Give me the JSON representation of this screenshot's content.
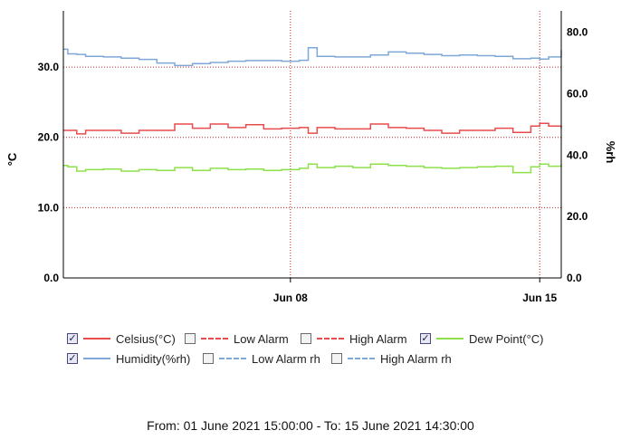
{
  "chart_data": {
    "type": "line",
    "xlabel": "",
    "ylabel": "°C",
    "y2label": "%rh",
    "x_range": [
      "2021-06-01 15:00",
      "2021-06-15 14:30"
    ],
    "x_ticks": [
      {
        "date": "2021-06-08",
        "label": "Jun 08"
      },
      {
        "date": "2021-06-15",
        "label": "Jun 15"
      }
    ],
    "ylim": [
      0,
      38
    ],
    "y_ticks": [
      "0.0",
      "10.0",
      "20.0",
      "30.0"
    ],
    "y2lim": [
      0,
      87
    ],
    "y2_ticks": [
      "0.0",
      "20.0",
      "40.0",
      "60.0",
      "80.0"
    ],
    "grid": true,
    "legend_position": "bottom",
    "series": [
      {
        "name": "Celsius(°C)",
        "axis": "left",
        "color": "#e84c4c",
        "dash": "solid",
        "checked": true,
        "x": [
          "2021-06-01 15:00",
          "2021-06-01 18:00",
          "2021-06-02 00:00",
          "2021-06-02 06:00",
          "2021-06-02 18:00",
          "2021-06-03 06:00",
          "2021-06-03 18:00",
          "2021-06-04 06:00",
          "2021-06-04 18:00",
          "2021-06-05 06:00",
          "2021-06-05 18:00",
          "2021-06-06 06:00",
          "2021-06-06 18:00",
          "2021-06-07 06:00",
          "2021-06-07 18:00",
          "2021-06-08 06:00",
          "2021-06-08 12:00",
          "2021-06-08 18:00",
          "2021-06-09 06:00",
          "2021-06-09 18:00",
          "2021-06-10 06:00",
          "2021-06-10 18:00",
          "2021-06-11 06:00",
          "2021-06-11 18:00",
          "2021-06-12 06:00",
          "2021-06-12 18:00",
          "2021-06-13 06:00",
          "2021-06-13 18:00",
          "2021-06-14 06:00",
          "2021-06-14 18:00",
          "2021-06-15 00:00",
          "2021-06-15 06:00",
          "2021-06-15 14:30"
        ],
        "y": [
          21.0,
          21.0,
          20.5,
          21.0,
          21.0,
          20.6,
          21.0,
          21.0,
          21.9,
          21.3,
          21.9,
          21.4,
          21.8,
          21.2,
          21.3,
          21.4,
          20.6,
          21.4,
          21.2,
          21.2,
          21.9,
          21.4,
          21.3,
          21.0,
          20.6,
          21.0,
          21.0,
          21.3,
          20.7,
          21.6,
          22.0,
          21.6,
          21.3
        ]
      },
      {
        "name": "Low Alarm",
        "axis": "left",
        "color": "#e84c4c",
        "dash": "dashed",
        "checked": false,
        "x": [],
        "y": []
      },
      {
        "name": "High Alarm",
        "axis": "left",
        "color": "#e84c4c",
        "dash": "dashdot",
        "checked": false,
        "x": [],
        "y": []
      },
      {
        "name": "Dew Point(°C)",
        "axis": "left",
        "color": "#8ee04a",
        "dash": "solid",
        "checked": true,
        "x": [
          "2021-06-01 15:00",
          "2021-06-01 18:00",
          "2021-06-02 00:00",
          "2021-06-02 06:00",
          "2021-06-02 18:00",
          "2021-06-03 06:00",
          "2021-06-03 18:00",
          "2021-06-04 06:00",
          "2021-06-04 18:00",
          "2021-06-05 06:00",
          "2021-06-05 18:00",
          "2021-06-06 06:00",
          "2021-06-06 18:00",
          "2021-06-07 06:00",
          "2021-06-07 18:00",
          "2021-06-08 06:00",
          "2021-06-08 12:00",
          "2021-06-08 18:00",
          "2021-06-09 06:00",
          "2021-06-09 18:00",
          "2021-06-10 06:00",
          "2021-06-10 18:00",
          "2021-06-11 06:00",
          "2021-06-11 18:00",
          "2021-06-12 06:00",
          "2021-06-12 18:00",
          "2021-06-13 06:00",
          "2021-06-13 18:00",
          "2021-06-14 06:00",
          "2021-06-14 18:00",
          "2021-06-15 00:00",
          "2021-06-15 06:00",
          "2021-06-15 14:30"
        ],
        "y": [
          16.0,
          15.8,
          15.2,
          15.4,
          15.5,
          15.2,
          15.4,
          15.3,
          15.7,
          15.3,
          15.6,
          15.4,
          15.5,
          15.3,
          15.4,
          15.6,
          16.2,
          15.7,
          15.9,
          15.7,
          16.2,
          16.0,
          15.9,
          15.7,
          15.6,
          15.7,
          15.8,
          15.9,
          15.0,
          15.8,
          16.2,
          15.9,
          16.2
        ]
      },
      {
        "name": "Humidity(%rh)",
        "axis": "right",
        "color": "#7fa8d8",
        "dash": "solid",
        "checked": true,
        "x": [
          "2021-06-01 15:00",
          "2021-06-01 18:00",
          "2021-06-02 00:00",
          "2021-06-02 06:00",
          "2021-06-02 18:00",
          "2021-06-03 06:00",
          "2021-06-03 18:00",
          "2021-06-04 06:00",
          "2021-06-04 18:00",
          "2021-06-05 06:00",
          "2021-06-05 18:00",
          "2021-06-06 06:00",
          "2021-06-06 18:00",
          "2021-06-07 06:00",
          "2021-06-07 18:00",
          "2021-06-08 06:00",
          "2021-06-08 12:00",
          "2021-06-08 18:00",
          "2021-06-09 06:00",
          "2021-06-09 18:00",
          "2021-06-10 06:00",
          "2021-06-10 18:00",
          "2021-06-11 06:00",
          "2021-06-11 18:00",
          "2021-06-12 06:00",
          "2021-06-12 18:00",
          "2021-06-13 06:00",
          "2021-06-13 18:00",
          "2021-06-14 06:00",
          "2021-06-14 18:00",
          "2021-06-15 00:00",
          "2021-06-15 06:00",
          "2021-06-15 14:30"
        ],
        "y": [
          74.5,
          73.0,
          72.8,
          72.2,
          72.0,
          71.6,
          71.2,
          70.0,
          69.2,
          69.8,
          70.2,
          70.6,
          70.8,
          70.8,
          70.6,
          70.9,
          75.0,
          72.2,
          72.0,
          72.0,
          72.6,
          73.6,
          73.2,
          72.8,
          72.4,
          72.6,
          72.4,
          72.2,
          71.4,
          71.6,
          71.3,
          72.0,
          74.2
        ]
      },
      {
        "name": "Low Alarm rh",
        "axis": "right",
        "color": "#7fa8d8",
        "dash": "dashed",
        "checked": false,
        "x": [],
        "y": []
      },
      {
        "name": "High Alarm rh",
        "axis": "right",
        "color": "#7fa8d8",
        "dash": "dashdot",
        "checked": false,
        "x": [],
        "y": []
      }
    ]
  },
  "legend": {
    "check_mark": "✓",
    "items": [
      {
        "label": "Celsius(°C)"
      },
      {
        "label": "Low Alarm"
      },
      {
        "label": "High Alarm"
      },
      {
        "label": "Dew Point(°C)"
      },
      {
        "label": "Humidity(%rh)"
      },
      {
        "label": "Low Alarm rh"
      },
      {
        "label": "High Alarm rh"
      }
    ]
  },
  "footer": {
    "range_text": "From: 01 June 2021 15:00:00  -  To: 15 June 2021 14:30:00"
  }
}
